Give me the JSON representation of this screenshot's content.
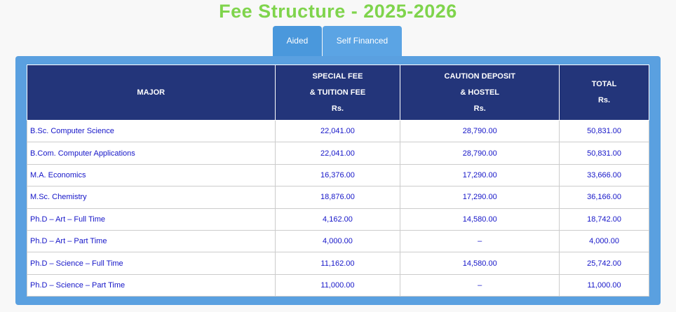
{
  "header": {
    "title": "Fee Structure - 2025-2026",
    "tabs": [
      "Aided",
      "Self Financed"
    ]
  },
  "table": {
    "columns": [
      [
        "MAJOR"
      ],
      [
        "SPECIAL FEE",
        "& TUITION FEE",
        "Rs."
      ],
      [
        "CAUTION DEPOSIT",
        "& HOSTEL",
        "Rs."
      ],
      [
        "TOTAL",
        "Rs."
      ]
    ],
    "rows": [
      [
        "B.Sc. Computer Science",
        "22,041.00",
        "28,790.00",
        "50,831.00"
      ],
      [
        "B.Com. Computer Applications",
        "22,041.00",
        "28,790.00",
        "50,831.00"
      ],
      [
        "M.A. Economics",
        "16,376.00",
        "17,290.00",
        "33,666.00"
      ],
      [
        "M.Sc. Chemistry",
        "18,876.00",
        "17,290.00",
        "36,166.00"
      ],
      [
        "Ph.D – Art  – Full Time",
        "4,162.00",
        "14,580.00",
        "18,742.00"
      ],
      [
        "Ph.D – Art  – Part Time",
        "4,000.00",
        "–",
        "4,000.00"
      ],
      [
        "Ph.D – Science – Full Time",
        "11,162.00",
        "14,580.00",
        "25,742.00"
      ],
      [
        "Ph.D – Science – Part Time",
        "11,000.00",
        "–",
        "11,000.00"
      ]
    ]
  }
}
